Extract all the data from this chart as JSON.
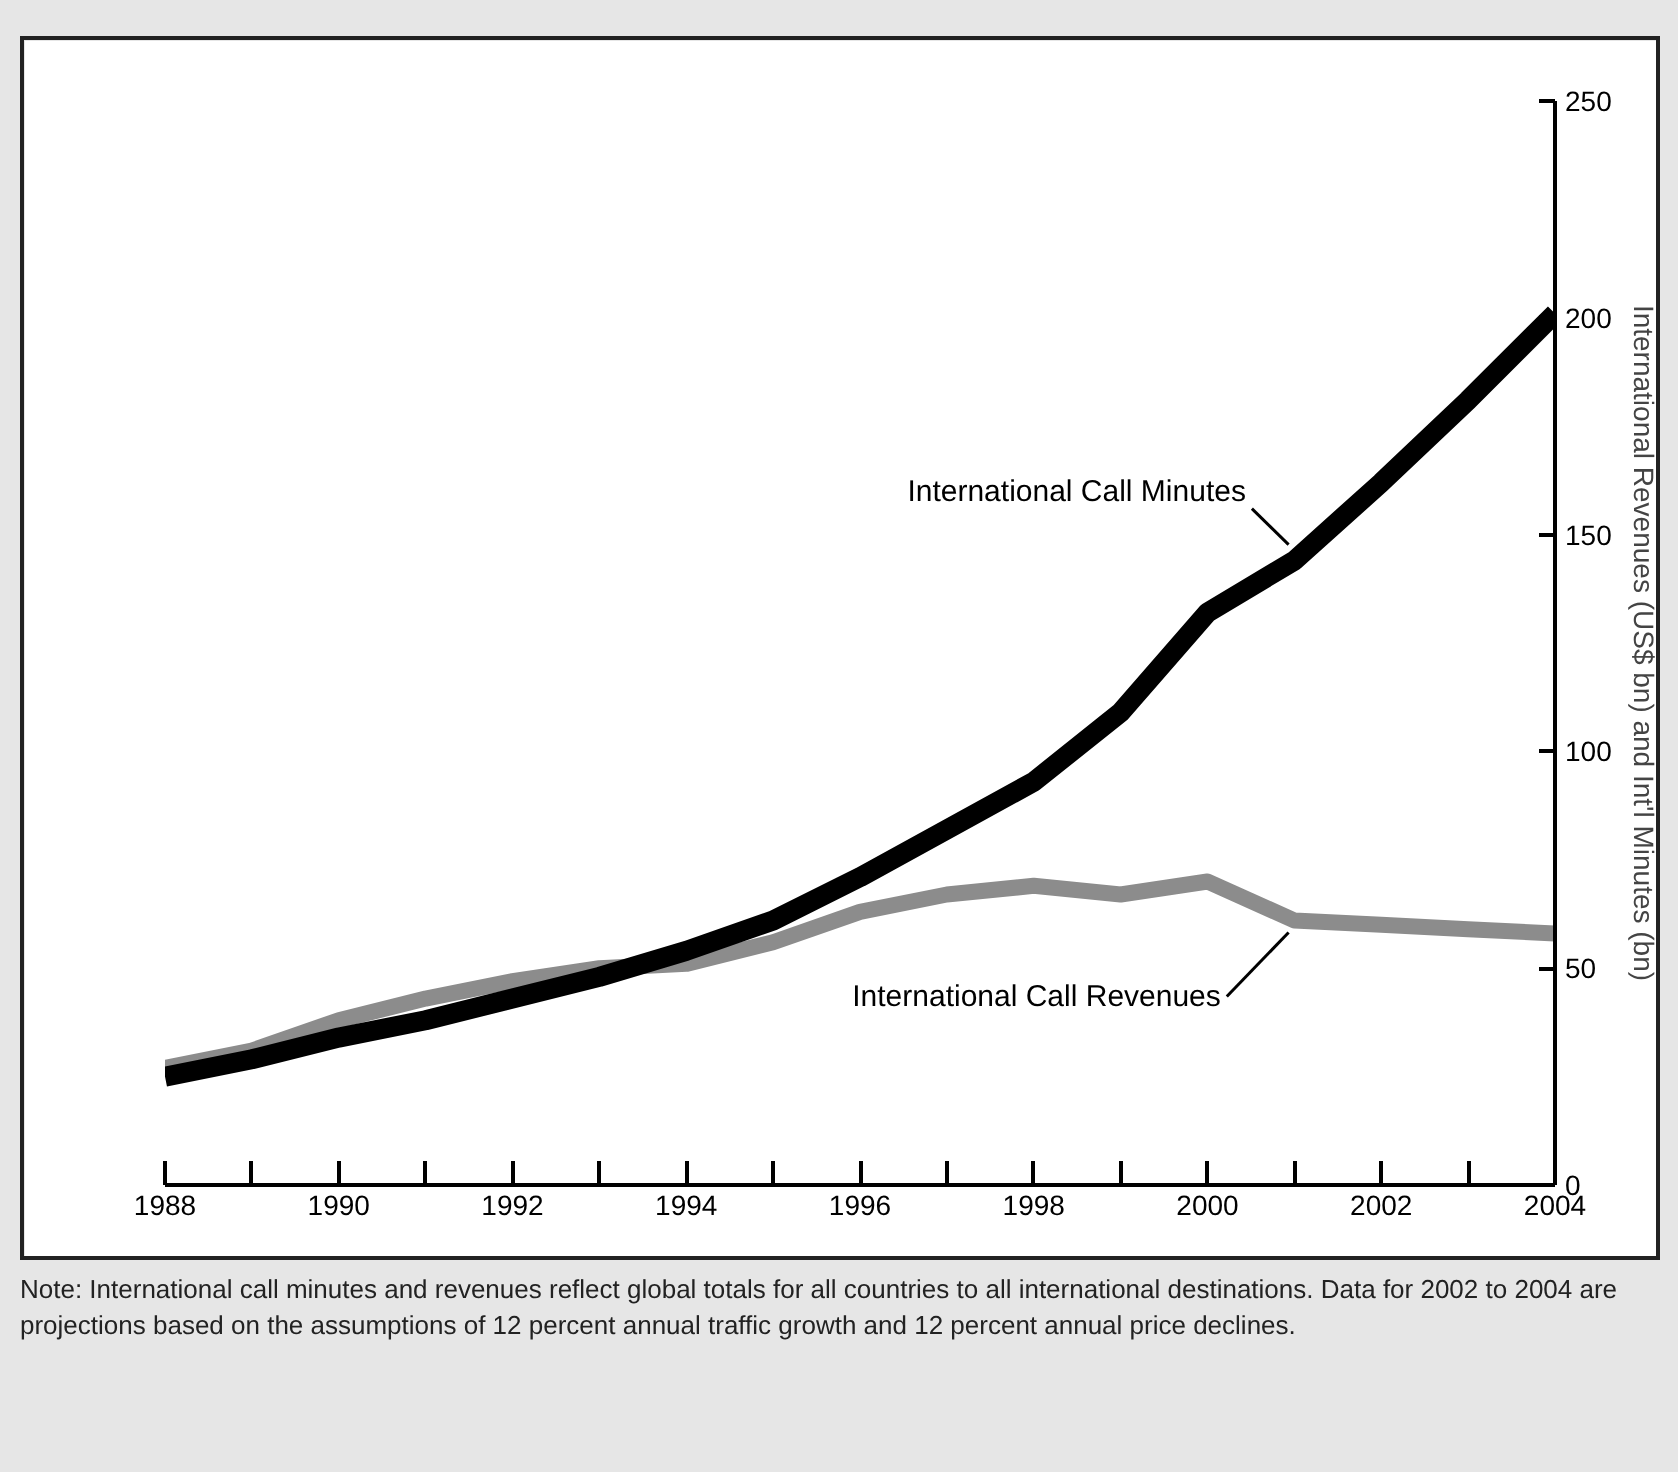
{
  "chart_data": {
    "type": "line",
    "ylabel": "International Revenues (US$ bn) and Int'l Minutes (bn)",
    "x": [
      1988,
      1989,
      1990,
      1991,
      1992,
      1993,
      1994,
      1995,
      1996,
      1997,
      1998,
      1999,
      2000,
      2001,
      2002,
      2003,
      2004
    ],
    "series": [
      {
        "name": "International Call Revenues",
        "color": "#8c8c8c",
        "values": [
          27,
          31,
          38,
          43,
          47,
          50,
          51,
          56,
          63,
          67,
          69,
          67,
          70,
          61,
          60,
          59,
          58
        ]
      },
      {
        "name": "International Call Minutes",
        "color": "#000000",
        "values": [
          25,
          29,
          34,
          38,
          43,
          48,
          54,
          61,
          71,
          82,
          93,
          109,
          132,
          144,
          162,
          181,
          201
        ]
      }
    ],
    "xlim": [
      1988,
      2004
    ],
    "ylim": [
      0,
      250
    ],
    "xticks": [
      1988,
      {
        "value": 1989,
        "label": null
      },
      1990,
      {
        "value": 1991,
        "label": null
      },
      1992,
      {
        "value": 1993,
        "label": null
      },
      1994,
      {
        "value": 1995,
        "label": null
      },
      1996,
      {
        "value": 1997,
        "label": null
      },
      1998,
      {
        "value": 1999,
        "label": null
      },
      2000,
      {
        "value": 2001,
        "label": null
      },
      2002,
      {
        "value": 2003,
        "label": null
      },
      2004
    ],
    "yticks": [
      0,
      50,
      100,
      150,
      200,
      250
    ],
    "grid": false,
    "legend": false,
    "marker": "none",
    "line_style": "solid",
    "annotations": [
      "Note:  International call minutes and revenues reflect global totals for all countries to all international destinations. Data for 2002 to 2004 are projections based on the assumptions of 12 percent annual traffic growth and 12 percent annual price declines."
    ]
  }
}
